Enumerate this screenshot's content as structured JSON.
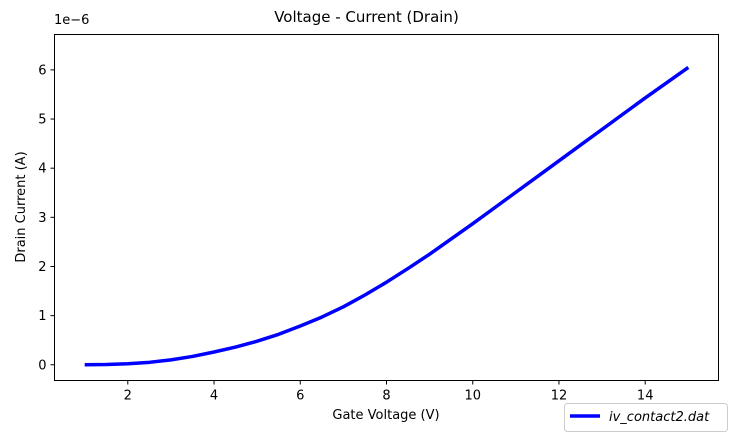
{
  "chart_data": {
    "type": "line",
    "title": "Voltage - Current (Drain)",
    "xlabel": "Gate Voltage (V)",
    "ylabel": "Drain Current (A)",
    "y_offset_label": "1e−6",
    "y_multiplier": 1e-06,
    "xlim": [
      0.3,
      15.7
    ],
    "ylim": [
      -0.32,
      6.72
    ],
    "x_ticks": [
      2,
      4,
      6,
      8,
      10,
      12,
      14
    ],
    "y_ticks": [
      0,
      1,
      2,
      3,
      4,
      5,
      6
    ],
    "grid": false,
    "legend_position": "bottom-right, outside plot area",
    "series": [
      {
        "name": "iv_contact2.dat",
        "color": "#0000ff",
        "x": [
          1.0,
          1.5,
          2.0,
          2.5,
          3.0,
          3.5,
          4.0,
          4.5,
          5.0,
          5.5,
          6.0,
          6.5,
          7.0,
          7.5,
          8.0,
          8.5,
          9.0,
          9.5,
          10.0,
          10.5,
          11.0,
          11.5,
          12.0,
          12.5,
          13.0,
          13.5,
          14.0,
          14.5,
          15.0
        ],
        "y": [
          0.0,
          0.005,
          0.02,
          0.05,
          0.1,
          0.17,
          0.26,
          0.36,
          0.48,
          0.62,
          0.79,
          0.97,
          1.18,
          1.42,
          1.68,
          1.96,
          2.25,
          2.56,
          2.87,
          3.19,
          3.51,
          3.83,
          4.15,
          4.47,
          4.79,
          5.11,
          5.43,
          5.74,
          6.05
        ]
      }
    ]
  }
}
